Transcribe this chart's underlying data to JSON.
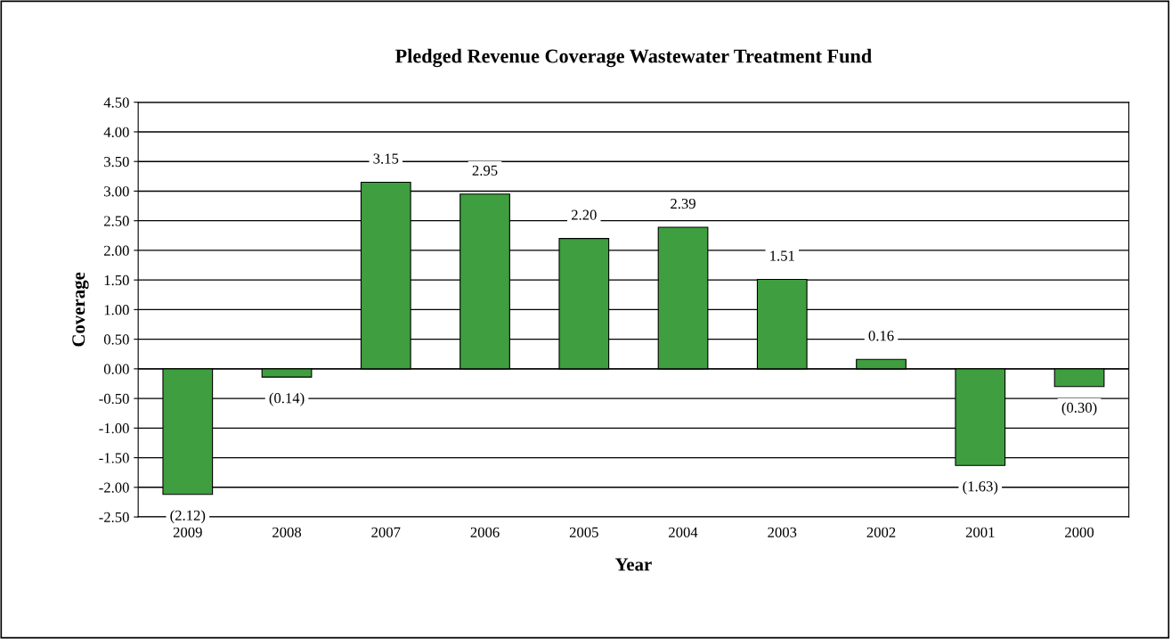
{
  "chart_data": {
    "type": "bar",
    "title": "Pledged Revenue Coverage Wastewater Treatment Fund",
    "xlabel": "Year",
    "ylabel": "Coverage",
    "categories": [
      "2009",
      "2008",
      "2007",
      "2006",
      "2005",
      "2004",
      "2003",
      "2002",
      "2001",
      "2000"
    ],
    "values": [
      -2.12,
      -0.14,
      3.15,
      2.95,
      2.2,
      2.39,
      1.51,
      0.16,
      -1.63,
      -0.3
    ],
    "value_labels": [
      "(2.12)",
      "(0.14)",
      "3.15",
      "2.95",
      "2.20",
      "2.39",
      "1.51",
      "0.16",
      "(1.63)",
      "(0.30)"
    ],
    "color": "#3f9e3f",
    "ylim": [
      -2.5,
      4.5
    ],
    "yticks": [
      {
        "value": -2.5,
        "label": "-2.50"
      },
      {
        "value": -2.0,
        "label": "-2.00"
      },
      {
        "value": -1.5,
        "label": "-1.50"
      },
      {
        "value": -1.0,
        "label": "-1.00"
      },
      {
        "value": -0.5,
        "label": "-0.50"
      },
      {
        "value": 0,
        "label": "0.00"
      },
      {
        "value": 0.5,
        "label": "0.50"
      },
      {
        "value": 1.0,
        "label": "1.00"
      },
      {
        "value": 1.5,
        "label": "1.50"
      },
      {
        "value": 2.0,
        "label": "2.00"
      },
      {
        "value": 2.5,
        "label": "2.50"
      },
      {
        "value": 3.0,
        "label": "3.00"
      },
      {
        "value": 3.5,
        "label": "3.50"
      },
      {
        "value": 4.0,
        "label": "4.00"
      },
      {
        "value": 4.5,
        "label": "4.50"
      }
    ],
    "grid": "y",
    "legend": false
  }
}
